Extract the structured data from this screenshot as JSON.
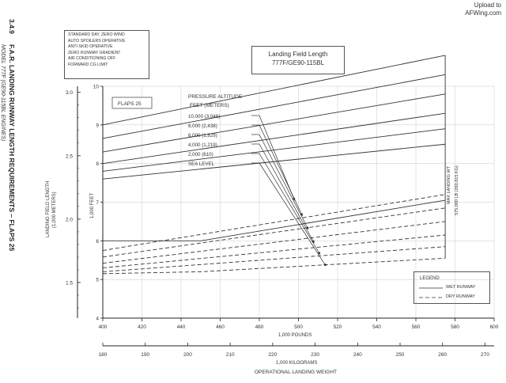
{
  "watermark": {
    "line1": "Upload to",
    "line2": "AFWing.com"
  },
  "side_title": {
    "section": "3.4.9",
    "main": "F.A.R. LANDING RUNWAY LENGTH REQUIREMENTS – FLAPS 25",
    "sub": "MODEL 777F (GE90-115BL ENGINES)"
  },
  "conditions": [
    "STANDARD DAY, ZERO WIND",
    "AUTO SPOILERS OPERATIVE",
    "ANTI-SKID OPERATIVE",
    "ZERO RUNWAY GRADIENT",
    "AIR CONDITIONING OFF",
    "FORWARD CG LIMIT"
  ],
  "title_box": {
    "line1": "Landing Field Length",
    "line2": "777F/GE90-115BL"
  },
  "chart_data": {
    "type": "line",
    "flaps_label": "FLAPS 25",
    "xlim": [
      400,
      600
    ],
    "x_ticks": [
      "400",
      "420",
      "440",
      "460",
      "480",
      "500",
      "520",
      "540",
      "560",
      "580",
      "600"
    ],
    "xlabel_primary": "1,000 POUNDS",
    "x2lim": [
      180,
      272.15
    ],
    "x2_ticks": [
      "180",
      "190",
      "200",
      "210",
      "220",
      "230",
      "240",
      "250",
      "260",
      "270"
    ],
    "xlabel_secondary": "1,000 KILOGRAMS",
    "xlabel_bottom": "OPERATIONAL LANDING WEIGHT",
    "ylim": [
      4,
      10
    ],
    "y_ticks": [
      "4",
      "5",
      "6",
      "7",
      "8",
      "9",
      "10"
    ],
    "ylabel_inner": "1,000 FEET",
    "y2_ticks": [
      "1.5",
      "2.0",
      "2.5",
      "3.0"
    ],
    "ylabel_outer_1": "LANDING FIELD LENGTH",
    "ylabel_outer_2": "(1,000 METERS)",
    "pressure_altitude_header": "PRESSURE ALTITUDE",
    "pressure_altitude_units": "FEET   (METERS)",
    "pressure_altitude_labels": [
      "10,000  (3,048)",
      "8,000  (2,438)",
      "6,000  (1,829)",
      "4,000  (1,219)",
      "2,000  (610)",
      "SEA LEVEL"
    ],
    "max_landing_wt_line1": "MAX LANDING WT",
    "max_landing_wt_line2": "575,000 LB (260,815 KG)",
    "wet_series": [
      {
        "x": [
          400,
          575
        ],
        "y": [
          9.0,
          10.8
        ]
      },
      {
        "x": [
          400,
          575
        ],
        "y": [
          8.65,
          10.3
        ]
      },
      {
        "x": [
          400,
          575
        ],
        "y": [
          8.3,
          9.8
        ]
      },
      {
        "x": [
          400,
          575
        ],
        "y": [
          8.0,
          9.3
        ]
      },
      {
        "x": [
          400,
          575
        ],
        "y": [
          7.8,
          8.9
        ]
      },
      {
        "x": [
          400,
          575
        ],
        "y": [
          7.6,
          8.5
        ]
      }
    ],
    "wet_envelope_lower": {
      "x": [
        400,
        450,
        575
      ],
      "y": [
        6.0,
        6.0,
        7.05
      ]
    },
    "dry_series": [
      {
        "x": [
          400,
          575
        ],
        "y": [
          5.75,
          7.2
        ]
      },
      {
        "x": [
          400,
          575
        ],
        "y": [
          5.58,
          6.85
        ]
      },
      {
        "x": [
          400,
          575
        ],
        "y": [
          5.42,
          6.5
        ]
      },
      {
        "x": [
          400,
          575
        ],
        "y": [
          5.3,
          6.15
        ]
      },
      {
        "x": [
          400,
          575
        ],
        "y": [
          5.2,
          5.85
        ]
      },
      {
        "x": [
          400,
          450,
          575
        ],
        "y": [
          5.15,
          5.2,
          5.55
        ]
      }
    ],
    "guide_arrows": [
      {
        "from": [
          480,
          8.25
        ],
        "to": [
          498,
          7.05
        ]
      },
      {
        "from": [
          480,
          8.05
        ],
        "to": [
          502,
          6.65
        ]
      },
      {
        "from": [
          480,
          7.85
        ],
        "to": [
          505,
          6.3
        ]
      },
      {
        "from": [
          480,
          7.65
        ],
        "to": [
          508,
          5.95
        ]
      },
      {
        "from": [
          480,
          7.45
        ],
        "to": [
          511,
          5.65
        ]
      },
      {
        "from": [
          480,
          7.25
        ],
        "to": [
          514,
          5.35
        ]
      }
    ],
    "legend": {
      "title": "LEGEND",
      "wet": "WET RUNWAY",
      "dry": "DRY RUNWAY"
    }
  }
}
